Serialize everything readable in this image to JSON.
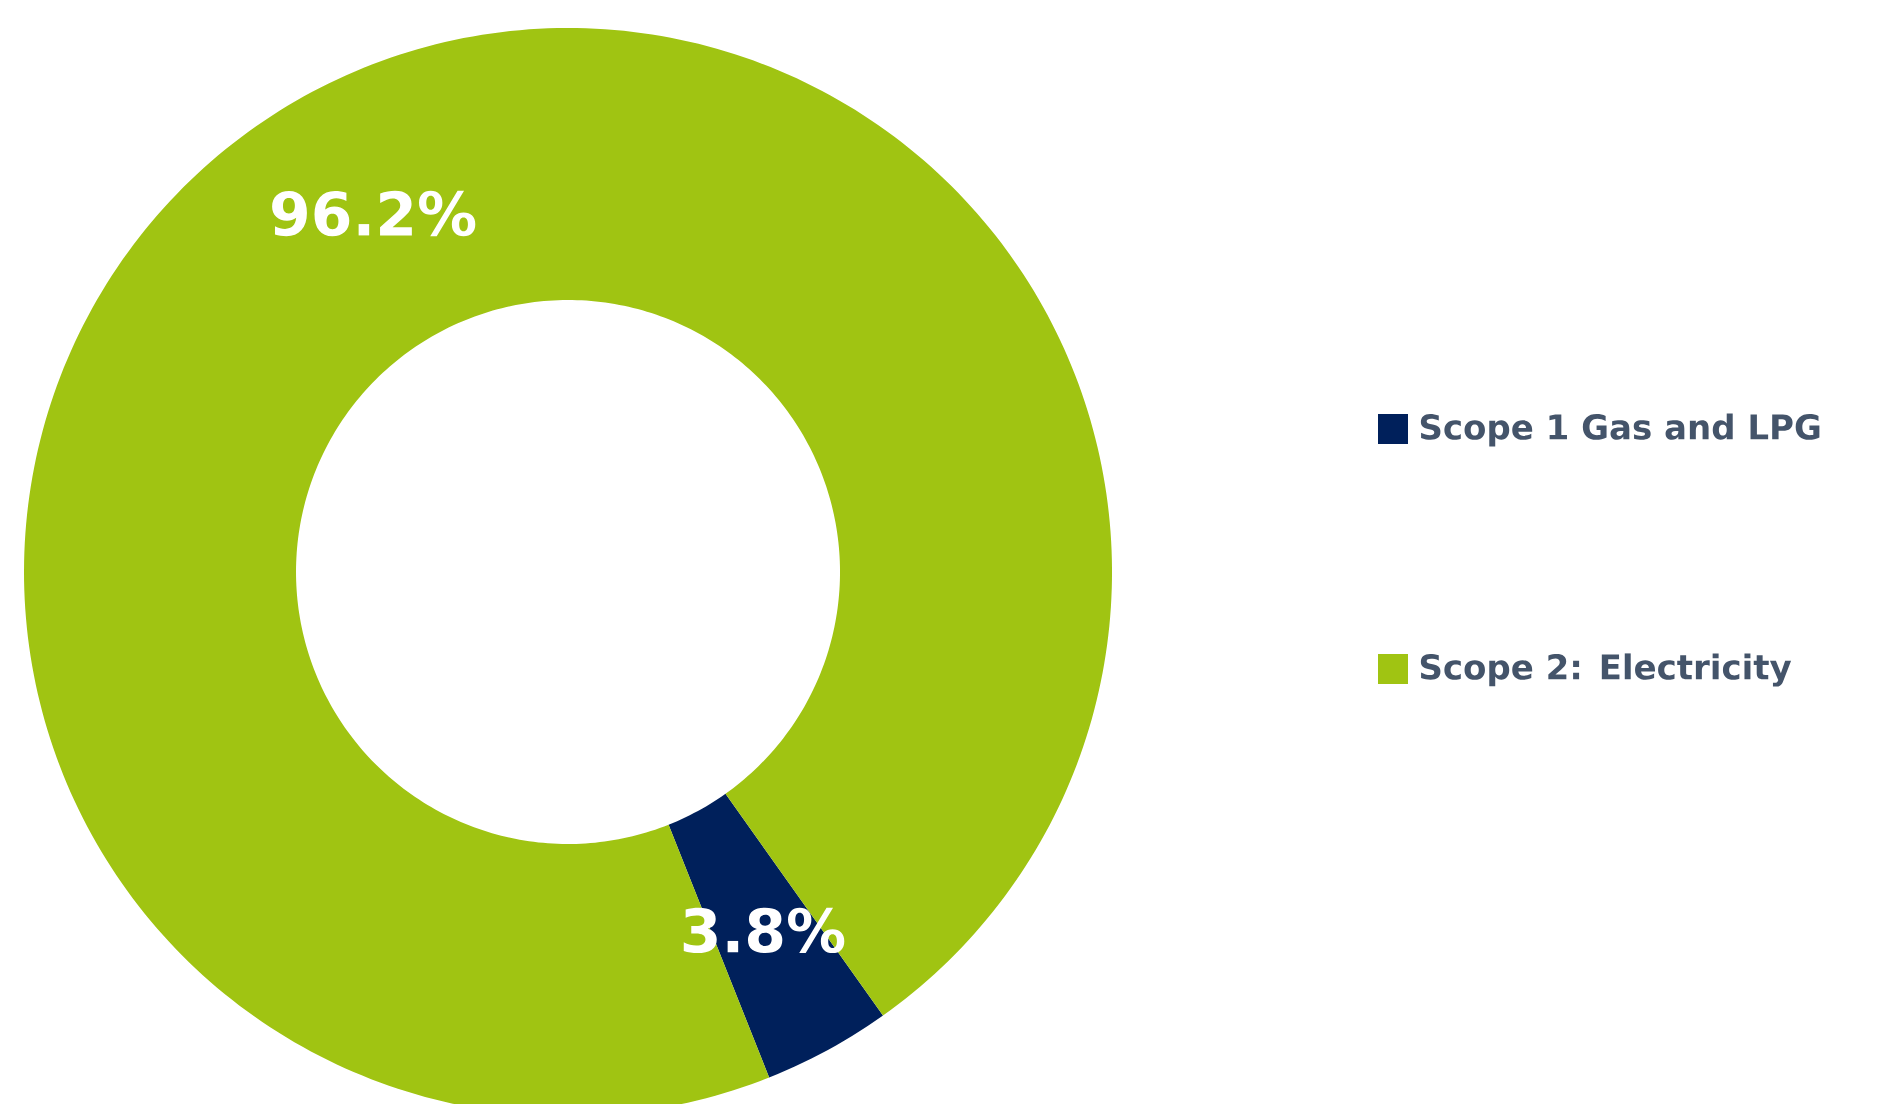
{
  "chart_data": {
    "type": "donut",
    "categories": [
      "Scope 1 Gas and LPG",
      "Scope 2: Electricity"
    ],
    "values": [
      3.8,
      96.2
    ],
    "colors": [
      "#00205b",
      "#a0c412"
    ],
    "value_labels": [
      "3.8%",
      "96.2%"
    ],
    "legend": "right"
  }
}
